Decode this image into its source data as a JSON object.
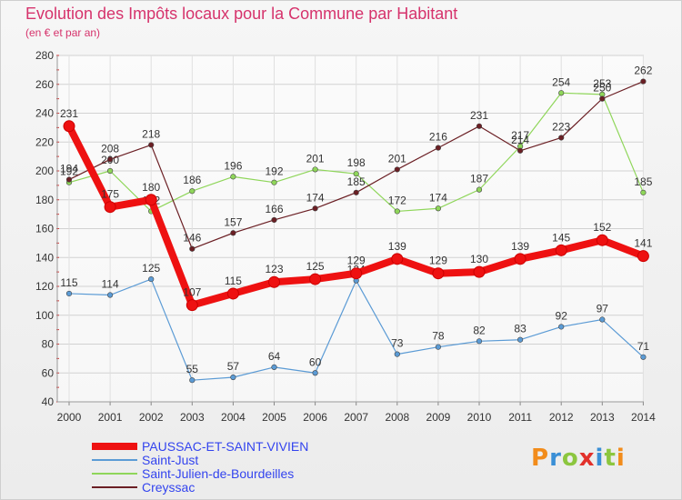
{
  "title": "Evolution des Impôts locaux pour la Commune par Habitant",
  "subtitle": "(en € et par an)",
  "logo": {
    "text": "Proxiti"
  },
  "chart_data": {
    "type": "line",
    "x": [
      "2000",
      "2001",
      "2002",
      "2003",
      "2004",
      "2005",
      "2006",
      "2007",
      "2008",
      "2009",
      "2010",
      "2011",
      "2012",
      "2013",
      "2014"
    ],
    "ylim": [
      40,
      280
    ],
    "yticks": [
      40,
      60,
      80,
      100,
      120,
      140,
      160,
      180,
      200,
      220,
      240,
      260,
      280
    ],
    "grid": true,
    "legend_position": "bottom-left",
    "series": [
      {
        "name": "PAUSSAC-ET-SAINT-VIVIEN",
        "color": "#ee1111",
        "values": [
          231,
          175,
          180,
          107,
          115,
          123,
          125,
          129,
          139,
          129,
          130,
          139,
          145,
          152,
          141
        ]
      },
      {
        "name": "Saint-Just",
        "color": "#5b9bd5",
        "values": [
          115,
          114,
          125,
          55,
          57,
          64,
          60,
          124,
          73,
          78,
          82,
          83,
          92,
          97,
          71
        ]
      },
      {
        "name": "Saint-Julien-de-Bourdeilles",
        "color": "#8fd65a",
        "values": [
          192,
          200,
          172,
          186,
          196,
          192,
          201,
          198,
          172,
          174,
          187,
          217,
          254,
          253,
          185
        ]
      },
      {
        "name": "Creyssac",
        "color": "#6b1f24",
        "values": [
          194,
          208,
          218,
          146,
          157,
          166,
          174,
          185,
          201,
          216,
          231,
          214,
          223,
          250,
          262
        ]
      }
    ]
  }
}
